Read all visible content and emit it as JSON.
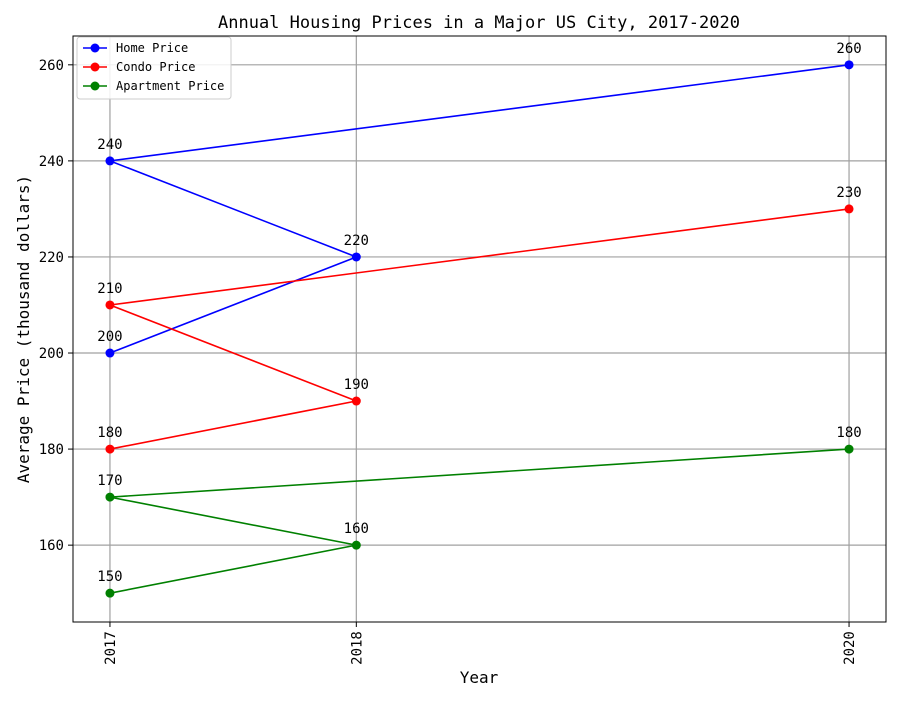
{
  "chart_data": {
    "type": "line",
    "title": "Annual Housing Prices in a Major US City, 2017-2020",
    "xlabel": "Year",
    "ylabel": "Average Price (thousand dollars)",
    "xlim": [
      2016.85,
      2020.15
    ],
    "ylim": [
      144,
      266
    ],
    "xticks": [
      2017,
      2018,
      2020
    ],
    "xtick_labels": [
      "2017",
      "2018",
      "2020"
    ],
    "yticks": [
      160,
      180,
      200,
      220,
      240,
      260
    ],
    "ytick_labels": [
      "160",
      "180",
      "200",
      "220",
      "240",
      "260"
    ],
    "grid": true,
    "legend_position": "upper-left",
    "series": [
      {
        "name": "Home Price",
        "color": "#0000ff",
        "x": [
          2017,
          2018,
          2017,
          2020
        ],
        "y": [
          200,
          220,
          240,
          260
        ],
        "labels": [
          "200",
          "220",
          "240",
          "260"
        ]
      },
      {
        "name": "Condo Price",
        "color": "#ff0000",
        "x": [
          2017,
          2018,
          2017,
          2020
        ],
        "y": [
          180,
          190,
          210,
          230
        ],
        "labels": [
          "180",
          "190",
          "210",
          "230"
        ]
      },
      {
        "name": "Apartment Price",
        "color": "#008000",
        "x": [
          2017,
          2018,
          2017,
          2020
        ],
        "y": [
          150,
          160,
          170,
          180
        ],
        "labels": [
          "150",
          "160",
          "170",
          "180"
        ]
      }
    ]
  }
}
